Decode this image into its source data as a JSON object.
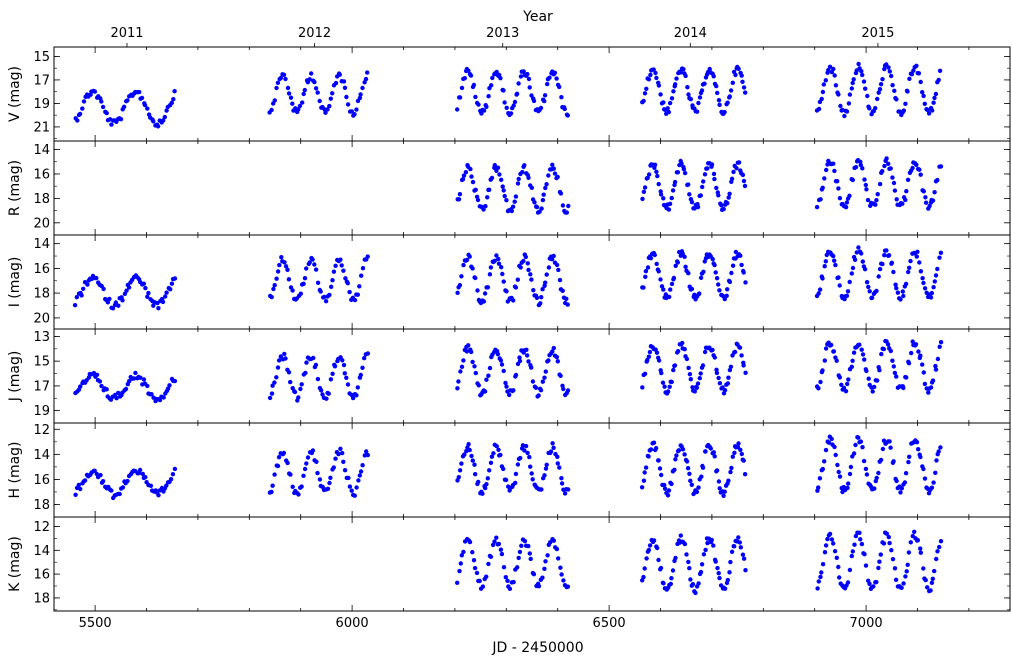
{
  "figure": {
    "top_axis_label": "Year",
    "x_axis_label": "JD - 2450000"
  },
  "style": {
    "point_color": "#0000ff",
    "axis_color": "#000000"
  },
  "chart_data": {
    "type": "scatter",
    "shared_x": {
      "label": "JD - 2450000",
      "lim": [
        5420,
        7280
      ],
      "ticks": [
        5500,
        6000,
        6500,
        7000
      ],
      "minor_step": 100
    },
    "top_axis": {
      "label": "Year",
      "ticks": [
        {
          "label": "2011",
          "x": 5562
        },
        {
          "label": "2012",
          "x": 5927
        },
        {
          "label": "2013",
          "x": 6293
        },
        {
          "label": "2014",
          "x": 6658
        },
        {
          "label": "2015",
          "x": 7023
        }
      ]
    },
    "panels": [
      {
        "band": "V",
        "ylabel": "V (mag)",
        "ylim": [
          22.2,
          14.2
        ],
        "yticks": [
          15,
          17,
          19,
          21
        ],
        "segments": [
          {
            "x0": 5462,
            "x1": 5655,
            "period": 84,
            "phase": 5495,
            "peak": 18.0,
            "trough": 20.7,
            "n": 62
          },
          {
            "x0": 5840,
            "x1": 6030,
            "period": 55,
            "phase": 5865,
            "peak": 16.6,
            "trough": 19.8,
            "n": 62
          },
          {
            "x0": 6205,
            "x1": 6420,
            "period": 55,
            "phase": 6225,
            "peak": 16.3,
            "trough": 19.8,
            "n": 80
          },
          {
            "x0": 6565,
            "x1": 6765,
            "period": 55,
            "phase": 6585,
            "peak": 16.1,
            "trough": 19.7,
            "n": 82
          },
          {
            "x0": 6905,
            "x1": 7145,
            "period": 55,
            "phase": 6930,
            "peak": 15.9,
            "trough": 19.8,
            "n": 88
          }
        ]
      },
      {
        "band": "R",
        "ylabel": "R (mag)",
        "ylim": [
          21.0,
          13.3
        ],
        "yticks": [
          14,
          16,
          18,
          20
        ],
        "segments": [
          {
            "x0": 6205,
            "x1": 6420,
            "period": 55,
            "phase": 6225,
            "peak": 15.5,
            "trough": 19.0,
            "n": 80
          },
          {
            "x0": 6565,
            "x1": 6765,
            "period": 55,
            "phase": 6585,
            "peak": 15.2,
            "trough": 18.8,
            "n": 82
          },
          {
            "x0": 6905,
            "x1": 7145,
            "period": 55,
            "phase": 6930,
            "peak": 15.0,
            "trough": 18.7,
            "n": 88
          }
        ]
      },
      {
        "band": "I",
        "ylabel": "I (mag)",
        "ylim": [
          20.9,
          13.3
        ],
        "yticks": [
          14,
          16,
          18,
          20
        ],
        "segments": [
          {
            "x0": 5462,
            "x1": 5655,
            "period": 84,
            "phase": 5495,
            "peak": 16.8,
            "trough": 19.0,
            "n": 62
          },
          {
            "x0": 5840,
            "x1": 6030,
            "period": 55,
            "phase": 5865,
            "peak": 15.3,
            "trough": 18.6,
            "n": 62
          },
          {
            "x0": 6205,
            "x1": 6420,
            "period": 55,
            "phase": 6225,
            "peak": 15.1,
            "trough": 18.7,
            "n": 80
          },
          {
            "x0": 6565,
            "x1": 6765,
            "period": 55,
            "phase": 6585,
            "peak": 14.8,
            "trough": 18.4,
            "n": 82
          },
          {
            "x0": 6905,
            "x1": 7145,
            "period": 55,
            "phase": 6930,
            "peak": 14.6,
            "trough": 18.3,
            "n": 88
          }
        ]
      },
      {
        "band": "J",
        "ylabel": "J (mag)",
        "ylim": [
          20.0,
          12.4
        ],
        "yticks": [
          13,
          15,
          17,
          19
        ],
        "segments": [
          {
            "x0": 5462,
            "x1": 5655,
            "period": 84,
            "phase": 5495,
            "peak": 16.2,
            "trough": 18.0,
            "n": 62
          },
          {
            "x0": 5840,
            "x1": 6030,
            "period": 55,
            "phase": 5865,
            "peak": 14.6,
            "trough": 17.9,
            "n": 62
          },
          {
            "x0": 6205,
            "x1": 6420,
            "period": 55,
            "phase": 6225,
            "peak": 14.0,
            "trough": 17.6,
            "n": 80
          },
          {
            "x0": 6565,
            "x1": 6765,
            "period": 55,
            "phase": 6585,
            "peak": 13.7,
            "trough": 17.4,
            "n": 82
          },
          {
            "x0": 6905,
            "x1": 7145,
            "period": 55,
            "phase": 6930,
            "peak": 13.5,
            "trough": 17.3,
            "n": 88
          }
        ]
      },
      {
        "band": "H",
        "ylabel": "H (mag)",
        "ylim": [
          19.0,
          11.5
        ],
        "yticks": [
          12,
          14,
          16,
          18
        ],
        "segments": [
          {
            "x0": 5462,
            "x1": 5655,
            "period": 84,
            "phase": 5495,
            "peak": 15.3,
            "trough": 17.2,
            "n": 62
          },
          {
            "x0": 5840,
            "x1": 6030,
            "period": 55,
            "phase": 5865,
            "peak": 13.8,
            "trough": 17.1,
            "n": 62
          },
          {
            "x0": 6205,
            "x1": 6420,
            "period": 55,
            "phase": 6225,
            "peak": 13.4,
            "trough": 17.0,
            "n": 80
          },
          {
            "x0": 6565,
            "x1": 6765,
            "period": 55,
            "phase": 6585,
            "peak": 13.2,
            "trough": 17.1,
            "n": 82
          },
          {
            "x0": 6905,
            "x1": 7145,
            "period": 55,
            "phase": 6930,
            "peak": 12.8,
            "trough": 16.9,
            "n": 88
          }
        ]
      },
      {
        "band": "K",
        "ylabel": "K (mag)",
        "ylim": [
          19.1,
          11.2
        ],
        "yticks": [
          12,
          14,
          16,
          18
        ],
        "segments": [
          {
            "x0": 6205,
            "x1": 6420,
            "period": 55,
            "phase": 6225,
            "peak": 13.2,
            "trough": 17.0,
            "n": 70
          },
          {
            "x0": 6565,
            "x1": 6765,
            "period": 55,
            "phase": 6585,
            "peak": 13.0,
            "trough": 17.3,
            "n": 78
          },
          {
            "x0": 6905,
            "x1": 7145,
            "period": 55,
            "phase": 6930,
            "peak": 12.7,
            "trough": 17.3,
            "n": 84
          }
        ]
      }
    ]
  }
}
